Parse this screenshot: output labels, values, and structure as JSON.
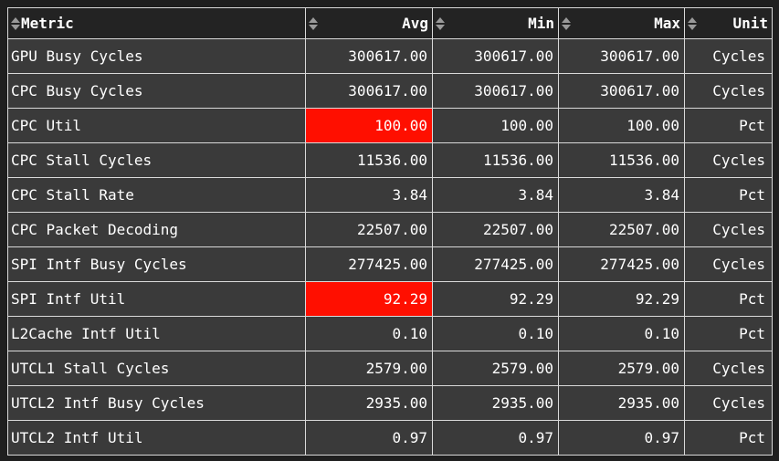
{
  "colors": {
    "highlight_red": "#ff0f00",
    "row_bg": "#3a3a3a",
    "header_bg": "#232323",
    "border": "#d9d9d9",
    "text": "#ffffff",
    "sort_icon": "#9a9a9a",
    "page_bg": "#1f1f1f"
  },
  "table": {
    "columns": [
      {
        "label": "Metric",
        "align": "left"
      },
      {
        "label": "Avg",
        "align": "right"
      },
      {
        "label": "Min",
        "align": "right"
      },
      {
        "label": "Max",
        "align": "right"
      },
      {
        "label": "Unit",
        "align": "right"
      }
    ],
    "rows": [
      {
        "metric": "GPU Busy Cycles",
        "avg": "300617.00",
        "min": "300617.00",
        "max": "300617.00",
        "unit": "Cycles",
        "avg_highlight": false
      },
      {
        "metric": "CPC Busy Cycles",
        "avg": "300617.00",
        "min": "300617.00",
        "max": "300617.00",
        "unit": "Cycles",
        "avg_highlight": false
      },
      {
        "metric": "CPC Util",
        "avg": "100.00",
        "min": "100.00",
        "max": "100.00",
        "unit": "Pct",
        "avg_highlight": true
      },
      {
        "metric": "CPC Stall Cycles",
        "avg": "11536.00",
        "min": "11536.00",
        "max": "11536.00",
        "unit": "Cycles",
        "avg_highlight": false
      },
      {
        "metric": "CPC Stall Rate",
        "avg": "3.84",
        "min": "3.84",
        "max": "3.84",
        "unit": "Pct",
        "avg_highlight": false
      },
      {
        "metric": "CPC Packet Decoding",
        "avg": "22507.00",
        "min": "22507.00",
        "max": "22507.00",
        "unit": "Cycles",
        "avg_highlight": false
      },
      {
        "metric": "SPI Intf Busy Cycles",
        "avg": "277425.00",
        "min": "277425.00",
        "max": "277425.00",
        "unit": "Cycles",
        "avg_highlight": false
      },
      {
        "metric": "SPI Intf Util",
        "avg": "92.29",
        "min": "92.29",
        "max": "92.29",
        "unit": "Pct",
        "avg_highlight": true
      },
      {
        "metric": "L2Cache Intf Util",
        "avg": "0.10",
        "min": "0.10",
        "max": "0.10",
        "unit": "Pct",
        "avg_highlight": false
      },
      {
        "metric": "UTCL1 Stall Cycles",
        "avg": "2579.00",
        "min": "2579.00",
        "max": "2579.00",
        "unit": "Cycles",
        "avg_highlight": false
      },
      {
        "metric": "UTCL2 Intf Busy Cycles",
        "avg": "2935.00",
        "min": "2935.00",
        "max": "2935.00",
        "unit": "Cycles",
        "avg_highlight": false
      },
      {
        "metric": "UTCL2 Intf Util",
        "avg": "0.97",
        "min": "0.97",
        "max": "0.97",
        "unit": "Pct",
        "avg_highlight": false
      }
    ]
  }
}
